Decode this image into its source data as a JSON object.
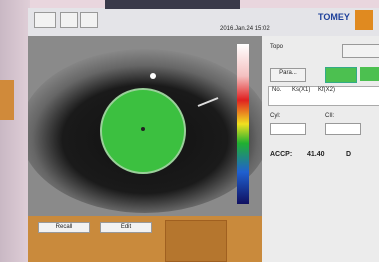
{
  "header": {
    "brand": "TOMEY",
    "datetime": "2016.Jan.24 15:02"
  },
  "panel": {
    "title": "Topo",
    "mode_button": "Para...",
    "table_headers": [
      "No.",
      "Ks(X1)",
      "Kf(X2)"
    ],
    "fields": [
      "Cyl:",
      "CII:"
    ],
    "accp_label": "ACCP:",
    "accp_value": "41.40",
    "accp_unit": "D"
  },
  "bottom": {
    "buttons": [
      "Recall",
      "Edit"
    ]
  }
}
